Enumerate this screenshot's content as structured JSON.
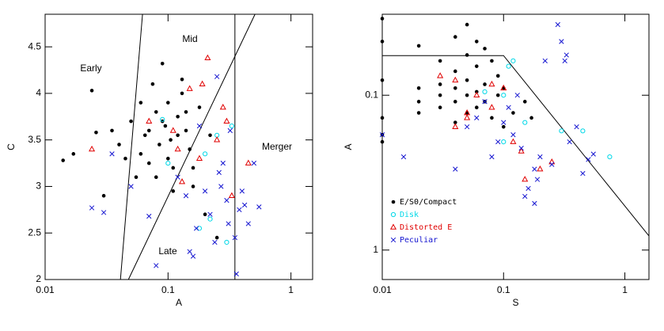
{
  "chart_data": [
    {
      "type": "scatter",
      "xlabel": "A",
      "ylabel": "C",
      "xscale": "log",
      "yscale": "linear",
      "xlim": [
        0.01,
        1.5
      ],
      "ylim": [
        2,
        4.85
      ],
      "xticks": [
        0.01,
        0.1,
        1
      ],
      "yticks": [
        2,
        2.5,
        3,
        3.5,
        4,
        4.5
      ],
      "lines": [
        {
          "x": [
            0.041,
            0.062
          ],
          "y": [
            2,
            4.85
          ]
        },
        {
          "x": [
            0.0476,
            0.51
          ],
          "y": [
            2,
            4.85
          ]
        },
        {
          "x": [
            0.35,
            0.35
          ],
          "y": [
            2,
            4.85
          ]
        }
      ],
      "annotations": [
        "Early",
        "Mid",
        "Late",
        "Merger"
      ],
      "series": [
        {
          "color": "#000000",
          "marker": "dot",
          "x": [
            0.014,
            0.017,
            0.024,
            0.026,
            0.03,
            0.035,
            0.04,
            0.045,
            0.05,
            0.055,
            0.06,
            0.065,
            0.07,
            0.075,
            0.08,
            0.085,
            0.09,
            0.095,
            0.1,
            0.105,
            0.11,
            0.12,
            0.13,
            0.14,
            0.15,
            0.16,
            0.18,
            0.2,
            0.22,
            0.25,
            0.06,
            0.07,
            0.08,
            0.09,
            0.1,
            0.12,
            0.14,
            0.16,
            0.11,
            0.13
          ],
          "y": [
            3.28,
            3.35,
            4.03,
            3.58,
            2.9,
            3.6,
            3.45,
            3.3,
            3.7,
            3.1,
            3.9,
            3.55,
            3.25,
            4.1,
            3.8,
            3.45,
            4.32,
            3.65,
            3.9,
            3.5,
            3.2,
            3.75,
            4.0,
            3.6,
            3.4,
            3.0,
            3.85,
            2.7,
            3.55,
            2.45,
            3.35,
            3.6,
            3.1,
            3.7,
            3.3,
            3.55,
            3.8,
            3.2,
            2.95,
            4.15
          ]
        },
        {
          "color": "#00d8e8",
          "marker": "circle",
          "x": [
            0.09,
            0.1,
            0.2,
            0.22,
            0.25,
            0.3,
            0.33,
            0.18
          ],
          "y": [
            3.72,
            3.25,
            3.35,
            2.65,
            3.55,
            2.4,
            3.65,
            2.55
          ]
        },
        {
          "color": "#e00000",
          "marker": "triangle",
          "x": [
            0.024,
            0.07,
            0.11,
            0.13,
            0.15,
            0.19,
            0.21,
            0.28,
            0.3,
            0.45,
            0.18,
            0.12,
            0.33,
            0.25
          ],
          "y": [
            3.4,
            3.7,
            3.6,
            3.05,
            4.05,
            4.1,
            4.38,
            3.85,
            3.7,
            3.25,
            3.3,
            3.4,
            2.9,
            3.5
          ]
        },
        {
          "color": "#1414d0",
          "marker": "cross",
          "x": [
            0.024,
            0.03,
            0.035,
            0.05,
            0.07,
            0.08,
            0.12,
            0.15,
            0.17,
            0.2,
            0.22,
            0.25,
            0.28,
            0.3,
            0.32,
            0.35,
            0.38,
            0.4,
            0.45,
            0.5,
            0.55,
            0.18,
            0.24,
            0.27,
            0.36,
            0.42,
            0.16,
            0.14,
            0.26,
            0.31
          ],
          "y": [
            2.77,
            2.72,
            3.35,
            3.0,
            2.68,
            2.15,
            3.1,
            2.3,
            2.55,
            2.95,
            2.7,
            4.18,
            3.25,
            2.85,
            3.6,
            2.45,
            2.75,
            2.95,
            2.6,
            3.25,
            2.78,
            3.65,
            2.4,
            3.0,
            2.06,
            2.8,
            2.25,
            2.9,
            3.15,
            2.6
          ]
        }
      ]
    },
    {
      "type": "scatter",
      "xlabel": "S",
      "ylabel": "A",
      "xscale": "log",
      "yscale": "log",
      "y_inverted": true,
      "xlim": [
        0.01,
        1.58
      ],
      "ylim": [
        0.03,
        1.55
      ],
      "xticks": [
        0.01,
        0.1,
        1
      ],
      "yticks": [
        0.1,
        1
      ],
      "legend": "lower left",
      "lines": [
        {
          "x": [
            0.01,
            0.1,
            1.58
          ],
          "y": [
            0.0555,
            0.0555,
            0.81
          ]
        }
      ],
      "series": [
        {
          "name": "E/S0/Compact",
          "color": "#000000",
          "marker": "dot",
          "x": [
            0.01,
            0.01,
            0.01,
            0.01,
            0.01,
            0.01,
            0.02,
            0.02,
            0.02,
            0.02,
            0.03,
            0.03,
            0.03,
            0.03,
            0.04,
            0.04,
            0.04,
            0.04,
            0.04,
            0.05,
            0.05,
            0.05,
            0.05,
            0.05,
            0.06,
            0.06,
            0.06,
            0.06,
            0.07,
            0.07,
            0.07,
            0.08,
            0.08,
            0.09,
            0.09,
            0.1,
            0.1,
            0.12,
            0.15,
            0.17
          ],
          "y": [
            0.032,
            0.045,
            0.08,
            0.14,
            0.18,
            0.2,
            0.048,
            0.09,
            0.11,
            0.13,
            0.06,
            0.085,
            0.1,
            0.12,
            0.042,
            0.07,
            0.09,
            0.11,
            0.15,
            0.035,
            0.055,
            0.08,
            0.1,
            0.13,
            0.045,
            0.065,
            0.095,
            0.12,
            0.05,
            0.085,
            0.11,
            0.06,
            0.14,
            0.075,
            0.1,
            0.09,
            0.16,
            0.13,
            0.11,
            0.14
          ]
        },
        {
          "name": "Disk",
          "color": "#00d8e8",
          "marker": "circle",
          "x": [
            0.07,
            0.1,
            0.11,
            0.12,
            0.15,
            0.3,
            0.45,
            0.75,
            0.1
          ],
          "y": [
            0.095,
            0.1,
            0.065,
            0.06,
            0.15,
            0.17,
            0.17,
            0.25,
            0.2
          ]
        },
        {
          "name": "Distorted E",
          "color": "#e00000",
          "marker": "triangle",
          "x": [
            0.03,
            0.04,
            0.04,
            0.05,
            0.05,
            0.06,
            0.08,
            0.1,
            0.12,
            0.15,
            0.2,
            0.25,
            0.14,
            0.08
          ],
          "y": [
            0.075,
            0.08,
            0.16,
            0.14,
            0.13,
            0.1,
            0.085,
            0.09,
            0.2,
            0.35,
            0.3,
            0.27,
            0.23,
            0.12
          ]
        },
        {
          "name": "Peculiar",
          "color": "#1414d0",
          "marker": "cross",
          "x": [
            0.01,
            0.015,
            0.04,
            0.05,
            0.06,
            0.08,
            0.09,
            0.1,
            0.12,
            0.13,
            0.14,
            0.16,
            0.18,
            0.2,
            0.22,
            0.25,
            0.3,
            0.35,
            0.4,
            0.45,
            0.5,
            0.55,
            0.28,
            0.32,
            0.33,
            0.18,
            0.15,
            0.11,
            0.07,
            0.19
          ],
          "y": [
            0.18,
            0.25,
            0.3,
            0.16,
            0.14,
            0.25,
            0.2,
            0.15,
            0.18,
            0.1,
            0.22,
            0.4,
            0.3,
            0.25,
            0.06,
            0.28,
            0.045,
            0.2,
            0.16,
            0.32,
            0.26,
            0.24,
            0.035,
            0.06,
            0.055,
            0.5,
            0.45,
            0.12,
            0.11,
            0.35
          ]
        }
      ]
    }
  ]
}
